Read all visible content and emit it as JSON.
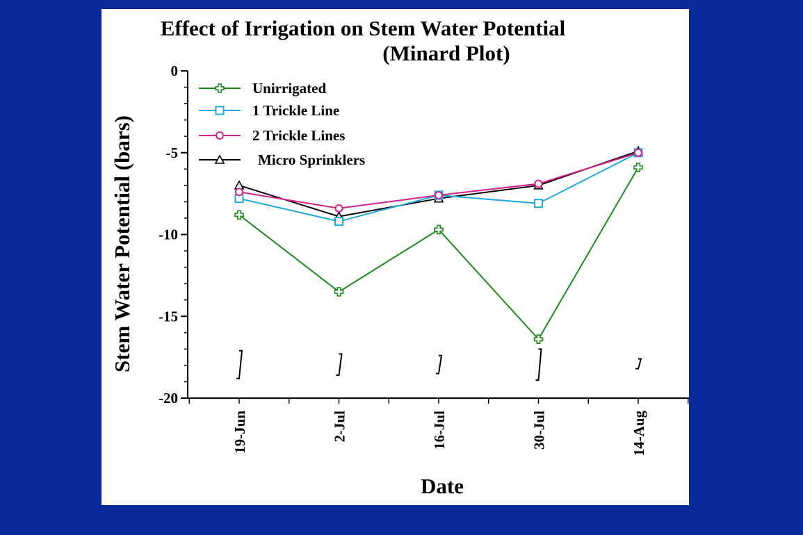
{
  "chart_data": {
    "type": "line",
    "title": "Effect of Irrigation on Stem Water Potential",
    "subtitle": "(Minard Plot)",
    "xlabel": "Date",
    "ylabel": "Stem Water Potential (bars)",
    "categories": [
      "19-Jun",
      "2-Jul",
      "16-Jul",
      "30-Jul",
      "14-Aug"
    ],
    "ylim": [
      -20,
      0
    ],
    "yticks": [
      0,
      -5,
      -10,
      -15,
      -20
    ],
    "ytick_labels": [
      "0",
      "-5",
      "-10",
      "-15",
      "-20"
    ],
    "grid": false,
    "legend_position": "top-left",
    "series": [
      {
        "name": "Unirrigated",
        "color": "#1a8a1a",
        "marker": "plus",
        "values": [
          -8.8,
          -13.5,
          -9.7,
          -16.4,
          -5.9
        ]
      },
      {
        "name": "1 Trickle Line",
        "color": "#22aadd",
        "marker": "square",
        "values": [
          -7.8,
          -9.2,
          -7.6,
          -8.1,
          -5.0
        ]
      },
      {
        "name": "2 Trickle Lines",
        "color": "#d4208a",
        "marker": "circle",
        "values": [
          -7.4,
          -8.4,
          -7.6,
          -6.9,
          -5.0
        ]
      },
      {
        "name": "Micro Sprinklers",
        "color": "#000000",
        "marker": "triangle",
        "values": [
          -7.0,
          -8.9,
          -7.8,
          -7.0,
          -4.9
        ]
      }
    ],
    "lsd_bars": [
      {
        "low": -18.8,
        "high": -17.1
      },
      {
        "low": -18.6,
        "high": -17.3
      },
      {
        "low": -18.5,
        "high": -17.4
      },
      {
        "low": -18.9,
        "high": -17.0
      },
      {
        "low": -18.2,
        "high": -17.6
      }
    ]
  }
}
